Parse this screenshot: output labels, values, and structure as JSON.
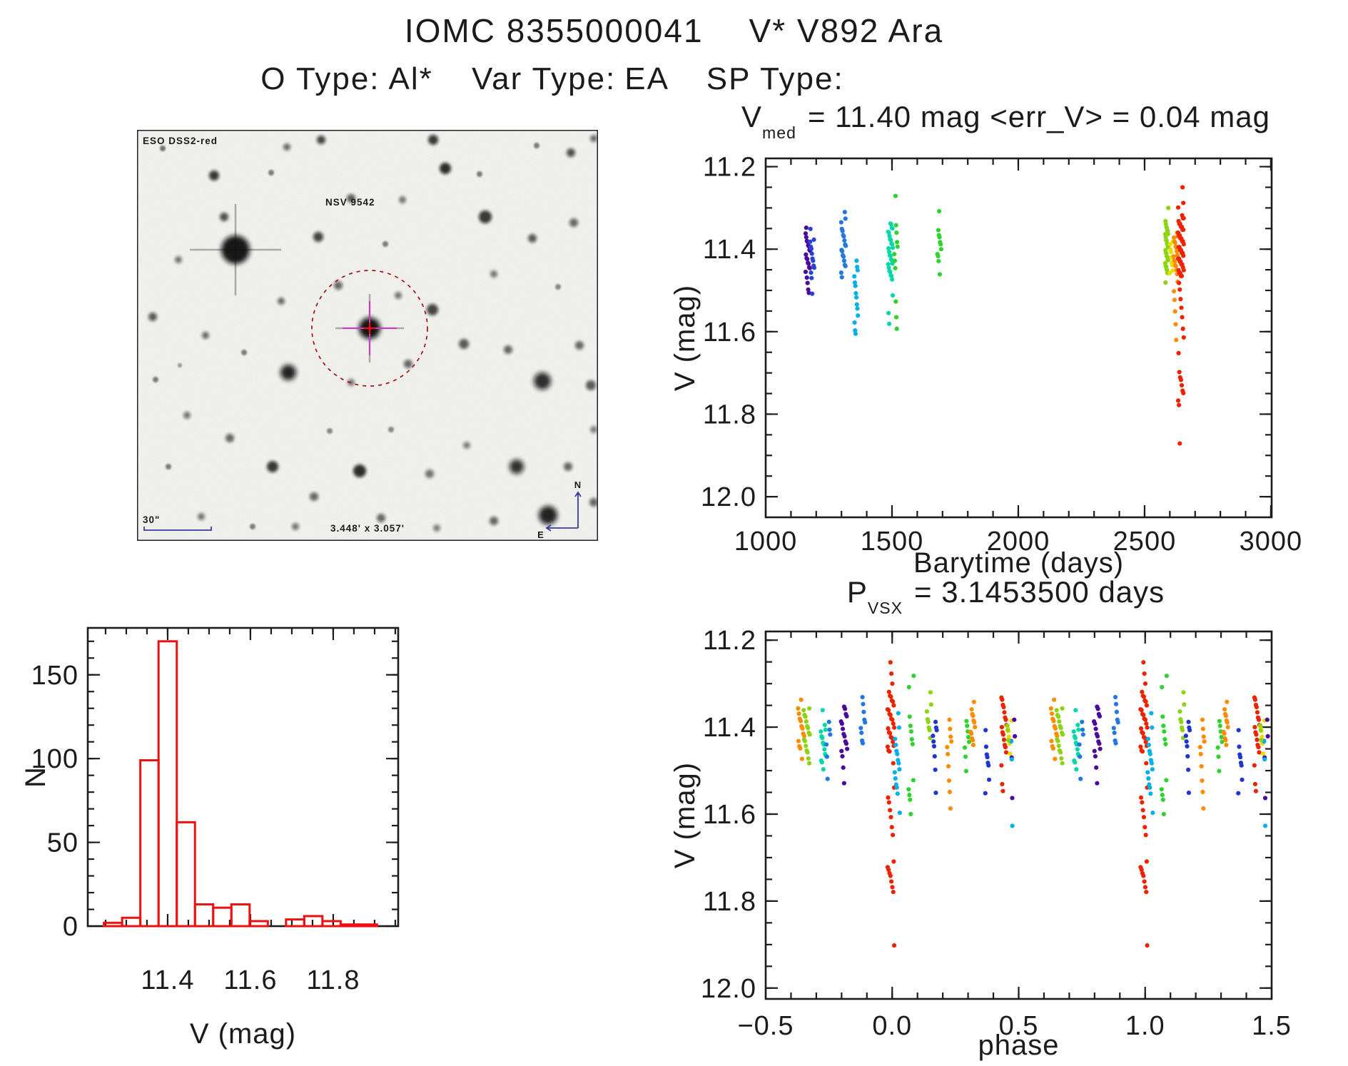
{
  "header": {
    "catalog_id": "IOMC 8355000041",
    "star_name": "V* V892 Ara",
    "otype_label": "O Type:",
    "otype": "Al*",
    "vartype_label": "Var Type:",
    "vartype": "EA",
    "sptype_label": "SP Type:",
    "sptype": ""
  },
  "palette": {
    "purple": "#4b0a9b",
    "indigo": "#2742d8",
    "navy": "#1f35cf",
    "blue": "#2277e0",
    "cyan": "#00b0e8",
    "teal": "#00d8a8",
    "green": "#2fd32f",
    "chartreuse": "#8cd411",
    "yellow": "#e8df00",
    "orange": "#ff8c00",
    "red": "#ef2200",
    "hist_red": "#ee1111",
    "axis": "#1c1c1c",
    "finder_blue": "#2431c8",
    "finder_red_label": "#d01818",
    "finder_circle": "#a00000",
    "finder_crosshair": "#c93ec9",
    "finder_cross": "#e01010",
    "finder_compass": "#3b3b9e"
  },
  "finder": {
    "survey": "ESO DSS2-red",
    "target_label": "NSV 9542",
    "scale_label": "30\"",
    "dimensions_label": "3.448' x 3.057'",
    "north_label": "N",
    "east_label": "E",
    "stars": [
      [
        36,
        26,
        4,
        0.55,
        0
      ],
      [
        108,
        64,
        7,
        0.8,
        0
      ],
      [
        122,
        122,
        6,
        0.7,
        0
      ],
      [
        138,
        168,
        20,
        0.95,
        1
      ],
      [
        210,
        24,
        5,
        0.6,
        0
      ],
      [
        258,
        14,
        6,
        0.75,
        0
      ],
      [
        300,
        96,
        6,
        0.65,
        0
      ],
      [
        254,
        150,
        7,
        0.75,
        0
      ],
      [
        202,
        240,
        5,
        0.6,
        0
      ],
      [
        58,
        182,
        5,
        0.55,
        0
      ],
      [
        22,
        262,
        6,
        0.65,
        0
      ],
      [
        96,
        288,
        5,
        0.6,
        0
      ],
      [
        150,
        312,
        4,
        0.5,
        0
      ],
      [
        26,
        350,
        4,
        0.5,
        0
      ],
      [
        212,
        340,
        11,
        0.9,
        0
      ],
      [
        282,
        218,
        6,
        0.6,
        0
      ],
      [
        366,
        232,
        5,
        0.55,
        0
      ],
      [
        414,
        252,
        8,
        0.75,
        0
      ],
      [
        326,
        278,
        15,
        0.97,
        1
      ],
      [
        380,
        328,
        6,
        0.6,
        0
      ],
      [
        300,
        354,
        5,
        0.55,
        0
      ],
      [
        458,
        300,
        7,
        0.65,
        0
      ],
      [
        520,
        308,
        6,
        0.6,
        0
      ],
      [
        568,
        352,
        12,
        0.85,
        0
      ],
      [
        620,
        302,
        6,
        0.6,
        0
      ],
      [
        636,
        358,
        7,
        0.65,
        0
      ],
      [
        415,
        14,
        7,
        0.8,
        0
      ],
      [
        432,
        54,
        8,
        0.85,
        0
      ],
      [
        372,
        98,
        5,
        0.55,
        0
      ],
      [
        488,
        122,
        9,
        0.8,
        0
      ],
      [
        560,
        22,
        4,
        0.5,
        0
      ],
      [
        608,
        32,
        6,
        0.7,
        0
      ],
      [
        640,
        12,
        5,
        0.6,
        0
      ],
      [
        612,
        130,
        6,
        0.6,
        0
      ],
      [
        554,
        152,
        6,
        0.65,
        0
      ],
      [
        500,
        202,
        5,
        0.55,
        0
      ],
      [
        70,
        400,
        5,
        0.55,
        0
      ],
      [
        44,
        472,
        4,
        0.5,
        0
      ],
      [
        130,
        432,
        6,
        0.6,
        0
      ],
      [
        190,
        472,
        8,
        0.8,
        0
      ],
      [
        248,
        514,
        6,
        0.6,
        0
      ],
      [
        312,
        478,
        9,
        0.85,
        0
      ],
      [
        342,
        544,
        6,
        0.6,
        0
      ],
      [
        410,
        482,
        6,
        0.55,
        0
      ],
      [
        462,
        442,
        5,
        0.5,
        0
      ],
      [
        532,
        472,
        10,
        0.85,
        0
      ],
      [
        604,
        472,
        6,
        0.6,
        0
      ],
      [
        576,
        540,
        13,
        0.9,
        0
      ],
      [
        640,
        522,
        6,
        0.6,
        0
      ],
      [
        90,
        542,
        5,
        0.55,
        0
      ],
      [
        162,
        556,
        4,
        0.5,
        0
      ],
      [
        222,
        556,
        5,
        0.55,
        0
      ],
      [
        420,
        558,
        5,
        0.5,
        0
      ],
      [
        500,
        548,
        6,
        0.6,
        0
      ],
      [
        270,
        422,
        4,
        0.45,
        0
      ],
      [
        356,
        420,
        4,
        0.45,
        0
      ],
      [
        188,
        60,
        4,
        0.5,
        0
      ],
      [
        480,
        62,
        4,
        0.5,
        0
      ],
      [
        348,
        160,
        4,
        0.5,
        0
      ],
      [
        60,
        330,
        3,
        0.4,
        0
      ],
      [
        590,
        220,
        4,
        0.45,
        0
      ],
      [
        640,
        420,
        5,
        0.5,
        0
      ]
    ]
  },
  "chart_data": [
    {
      "type": "scatter",
      "title": {
        "symbol": "V",
        "sub": "med",
        "text": "=  11.40 mag  <err_V>  =  0.04 mag"
      },
      "xlabel": "Barytime (days)",
      "ylabel": "V (mag)",
      "xlim": [
        1000,
        3003
      ],
      "ylim": [
        11.18,
        12.05
      ],
      "xticks": {
        "vals": [
          1000,
          1500,
          2000,
          2500,
          3000
        ],
        "labels": [
          "1000",
          "1500",
          "2000",
          "2500",
          "3000"
        ]
      },
      "yticks": {
        "vals": [
          11.2,
          11.4,
          11.6,
          11.8,
          12.0
        ],
        "labels": [
          "11.2",
          "11.4",
          "11.6",
          "11.8",
          "12.0"
        ]
      },
      "xminor": {
        "from": 1000,
        "to": 3000,
        "step": 100
      },
      "yminor": {
        "from": 11.2,
        "to": 12.0,
        "step": 0.05
      },
      "clusters": [
        {
          "x": 1167,
          "dx": 9,
          "color": "purple",
          "bands": [
            [
              11.365,
              11.455,
              0.006
            ]
          ],
          "mags": [
            11.345,
            11.47,
            11.48,
            11.5,
            11.505
          ]
        },
        {
          "x": 1184,
          "dx": 8,
          "color": "indigo",
          "bands": [
            [
              11.375,
              11.452,
              0.009
            ]
          ],
          "mags": [
            11.35,
            11.46,
            11.47,
            11.505
          ]
        },
        {
          "x": 1308,
          "dx": 9,
          "color": "blue",
          "bands": [
            [
              11.31,
              11.35,
              0.013
            ],
            [
              11.358,
              11.442,
              0.007
            ]
          ],
          "mags": [
            11.455,
            11.47
          ]
        },
        {
          "x": 1358,
          "dx": 7,
          "color": "cyan",
          "bands": [
            [
              11.43,
              11.5,
              0.012
            ],
            [
              11.505,
              11.575,
              0.014
            ]
          ],
          "mags": [
            11.598,
            11.603
          ]
        },
        {
          "x": 1494,
          "dx": 9,
          "color": "teal",
          "bands": [
            [
              11.335,
              11.475,
              0.0055
            ]
          ],
          "mags": [
            11.515,
            11.555,
            11.578
          ]
        },
        {
          "x": 1516,
          "dx": 7,
          "color": "green",
          "mags": [
            11.27,
            11.345,
            11.36,
            11.38,
            11.395,
            11.41,
            11.43,
            11.445,
            11.53,
            11.565,
            11.59
          ]
        },
        {
          "x": 1688,
          "dx": 8,
          "color": "green",
          "bands": [
            [
              11.355,
              11.435,
              0.009
            ]
          ],
          "mags": [
            11.31,
            11.46
          ]
        },
        {
          "x": 2588,
          "dx": 6,
          "color": "chartreuse",
          "bands": [
            [
              11.335,
              11.465,
              0.0045
            ]
          ],
          "mags": [
            11.3,
            11.478
          ]
        },
        {
          "x": 2606,
          "dx": 6,
          "color": "yellow",
          "bands": [
            [
              11.38,
              11.46,
              0.01
            ]
          ]
        },
        {
          "x": 2623,
          "dx": 8,
          "color": "orange",
          "bands": [
            [
              11.36,
              11.46,
              0.0065
            ]
          ],
          "mags": [
            11.48,
            11.5,
            11.525,
            11.55,
            11.585,
            11.62
          ]
        },
        {
          "x": 2644,
          "dx": 11,
          "color": "red",
          "bands": [
            [
              11.32,
              11.47,
              0.004
            ]
          ],
          "mags": [
            11.25,
            11.285,
            11.3,
            11.48,
            11.5,
            11.52,
            11.545,
            11.565,
            11.59,
            11.615,
            11.65,
            11.7,
            11.71,
            11.72,
            11.73,
            11.74,
            11.75,
            11.765,
            11.78,
            11.87
          ]
        }
      ]
    },
    {
      "type": "histogram",
      "xlabel": "V (mag)",
      "ylabel": "N",
      "bin_start": 11.246,
      "bin_width": 0.044,
      "counts": [
        2,
        5,
        99,
        170,
        62,
        13,
        11,
        13,
        3,
        0,
        4,
        6,
        3,
        1,
        1
      ],
      "xlim": [
        11.207,
        11.957
      ],
      "ylim": [
        178,
        0
      ],
      "xticks": {
        "vals": [
          11.4,
          11.6,
          11.8
        ],
        "labels": [
          "11.4",
          "11.6",
          "11.8"
        ]
      },
      "yticks": {
        "vals": [
          0,
          50,
          100,
          150
        ],
        "labels": [
          "0",
          "50",
          "100",
          "150"
        ]
      },
      "xminor": {
        "from": 11.25,
        "to": 11.95,
        "step": 0.05
      },
      "yminor": {
        "from": 0,
        "to": 170,
        "step": 10
      }
    },
    {
      "type": "scatter",
      "title": {
        "symbol": "P",
        "sub": "VSX",
        "text": "=  3.1453500 days"
      },
      "xlabel": "phase",
      "ylabel": "V (mag)",
      "xlim": [
        -0.5,
        1.5
      ],
      "ylim": [
        11.18,
        12.025
      ],
      "duplicate_offset": 1,
      "xticks": {
        "vals": [
          -0.5,
          0,
          0.5,
          1,
          1.5
        ],
        "labels": [
          "−0.5",
          "0.0",
          "0.5",
          "1.0",
          "1.5"
        ]
      },
      "yticks": {
        "vals": [
          11.2,
          11.4,
          11.6,
          11.8,
          12.0
        ],
        "labels": [
          "11.2",
          "11.4",
          "11.6",
          "11.8",
          "12.0"
        ]
      },
      "xminor": {
        "from": -0.5,
        "to": 1.5,
        "step": 0.1
      },
      "yminor": {
        "from": 11.2,
        "to": 12.0,
        "step": 0.05
      },
      "clusters": [
        {
          "x": -0.36,
          "dx": 0.012,
          "color": "orange",
          "bands": [
            [
              11.36,
              11.45,
              0.009
            ]
          ],
          "mags": [
            11.335,
            11.475
          ]
        },
        {
          "x": -0.338,
          "dx": 0.012,
          "color": "chartreuse",
          "bands": [
            [
              11.355,
              11.46,
              0.008
            ]
          ],
          "mags": [
            11.47,
            11.485
          ]
        },
        {
          "x": -0.272,
          "dx": 0.01,
          "color": "teal",
          "bands": [
            [
              11.395,
              11.49,
              0.008
            ]
          ],
          "mags": [
            11.36,
            11.5
          ]
        },
        {
          "x": -0.252,
          "dx": 0.008,
          "color": "blue",
          "mags": [
            11.39,
            11.405,
            11.42,
            11.44,
            11.465,
            11.52
          ]
        },
        {
          "x": -0.19,
          "dx": 0.012,
          "color": "purple",
          "bands": [
            [
              11.35,
              11.47,
              0.009
            ]
          ],
          "mags": [
            11.49,
            11.53
          ]
        },
        {
          "x": -0.115,
          "dx": 0.009,
          "color": "blue",
          "mags": [
            11.33,
            11.35,
            11.365,
            11.38,
            11.39,
            11.4,
            11.415,
            11.43,
            11.44
          ]
        },
        {
          "x": -0.005,
          "dx": 0.013,
          "color": "red",
          "bands": [
            [
              11.32,
              11.46,
              0.006
            ]
          ],
          "mags": [
            11.25,
            11.28,
            11.3,
            11.48,
            11.54,
            11.56,
            11.575,
            11.59,
            11.61,
            11.63,
            11.645,
            11.71,
            11.72,
            11.73,
            11.735,
            11.745,
            11.755,
            11.765,
            11.78,
            11.9
          ]
        },
        {
          "x": 0.02,
          "dx": 0.01,
          "color": "cyan",
          "bands": [
            [
              11.43,
              11.56,
              0.011
            ]
          ],
          "mags": [
            11.37,
            11.4,
            11.6
          ]
        },
        {
          "x": 0.075,
          "dx": 0.01,
          "color": "green",
          "mags": [
            11.28,
            11.31,
            11.375,
            11.4,
            11.41,
            11.425,
            11.44,
            11.52,
            11.545,
            11.555,
            11.57,
            11.6
          ]
        },
        {
          "x": 0.145,
          "dx": 0.009,
          "color": "chartreuse",
          "mags": [
            11.32,
            11.345,
            11.365,
            11.38,
            11.39,
            11.4,
            11.41,
            11.425
          ]
        },
        {
          "x": 0.168,
          "dx": 0.008,
          "color": "navy",
          "mags": [
            11.39,
            11.4,
            11.41,
            11.42,
            11.43,
            11.445,
            11.465,
            11.5,
            11.55
          ]
        },
        {
          "x": 0.225,
          "dx": 0.009,
          "color": "orange",
          "mags": [
            11.38,
            11.405,
            11.42,
            11.435,
            11.445,
            11.465,
            11.49,
            11.52,
            11.55,
            11.585
          ]
        },
        {
          "x": 0.295,
          "dx": 0.009,
          "color": "green",
          "mags": [
            11.385,
            11.4,
            11.41,
            11.42,
            11.435,
            11.445,
            11.47,
            11.5
          ]
        },
        {
          "x": 0.318,
          "dx": 0.009,
          "color": "orange",
          "bands": [
            [
              11.36,
              11.44,
              0.008
            ]
          ],
          "mags": [
            11.345
          ]
        },
        {
          "x": 0.375,
          "dx": 0.008,
          "color": "navy",
          "mags": [
            11.41,
            11.445,
            11.46,
            11.47,
            11.48,
            11.49,
            11.52,
            11.555
          ]
        },
        {
          "x": 0.442,
          "dx": 0.01,
          "color": "red",
          "bands": [
            [
              11.33,
              11.46,
              0.009
            ]
          ],
          "mags": [
            11.49,
            11.53,
            11.55
          ]
        },
        {
          "x": 0.465,
          "dx": 0.008,
          "color": "yellow",
          "mags": [
            11.385,
            11.4,
            11.41,
            11.42,
            11.44,
            11.46
          ]
        },
        {
          "x": 0.478,
          "dx": 0.008,
          "color": "purple",
          "mags": [
            11.385,
            11.42,
            11.435,
            11.47,
            11.56
          ]
        },
        {
          "x": 0.468,
          "dx": 0.008,
          "color": "cyan",
          "mags": [
            11.43,
            11.475,
            11.625
          ]
        },
        {
          "x": 0.455,
          "dx": 0.006,
          "color": "chartreuse",
          "mags": [
            11.395,
            11.41,
            11.43
          ]
        }
      ]
    }
  ]
}
